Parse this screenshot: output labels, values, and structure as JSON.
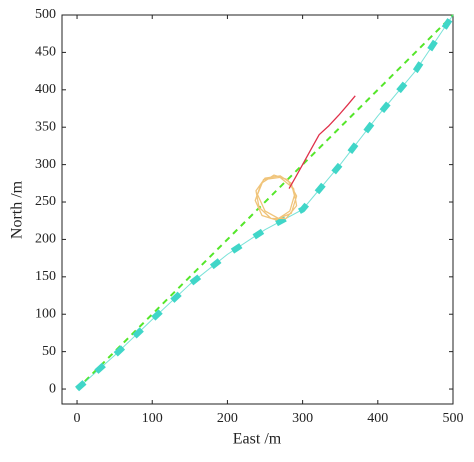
{
  "chart_data": {
    "type": "line",
    "xlabel": "East /m",
    "ylabel": "North /m",
    "xlim": [
      -20,
      500
    ],
    "ylim": [
      -20,
      500
    ],
    "xticks": [
      0,
      100,
      200,
      300,
      400,
      500
    ],
    "yticks": [
      0,
      50,
      100,
      150,
      200,
      250,
      300,
      350,
      400,
      450,
      500
    ],
    "series": [
      {
        "color": "#55e62a",
        "style": "dashed",
        "x": [
          0,
          500
        ],
        "values": [
          0,
          500
        ]
      },
      {
        "color": "#40d6c8",
        "style": "thick-dashed",
        "x": [
          0,
          50,
          100,
          150,
          200,
          250,
          300,
          350,
          400,
          450,
          500
        ],
        "values": [
          0,
          45,
          93,
          140,
          180,
          213,
          240,
          300,
          365,
          425,
          500
        ]
      },
      {
        "color": "#f0c47a",
        "style": "solid",
        "x": [
          290,
          285,
          270,
          250,
          238,
          242,
          258,
          278,
          292,
          288,
          270,
          248,
          240,
          250,
          268,
          285,
          292,
          280,
          262,
          245,
          237,
          246,
          265,
          283,
          290
        ],
        "values": [
          255,
          275,
          285,
          282,
          265,
          243,
          228,
          228,
          245,
          268,
          283,
          280,
          260,
          238,
          228,
          235,
          258,
          280,
          286,
          275,
          252,
          232,
          226,
          238,
          262
        ]
      },
      {
        "color": "#e0304a",
        "style": "solid",
        "x": [
          282,
          290,
          300,
          312,
          322,
          335,
          348,
          360,
          370
        ],
        "values": [
          268,
          282,
          300,
          322,
          340,
          352,
          366,
          380,
          392
        ]
      }
    ]
  }
}
